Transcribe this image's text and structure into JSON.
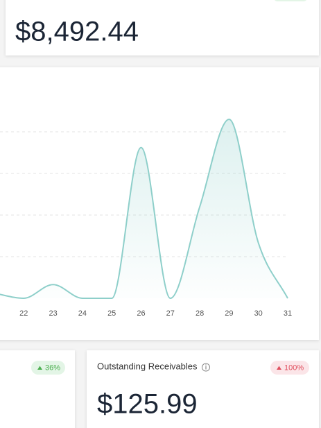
{
  "top_card": {
    "value": "$8,492.44"
  },
  "chart_data": {
    "type": "area",
    "categories": [
      null,
      "22",
      "23",
      "24",
      "25",
      "26",
      "27",
      "28",
      "29",
      "30",
      "31"
    ],
    "values": [
      0.12,
      0,
      0.33,
      0,
      0,
      3.62,
      0,
      2.2,
      4.3,
      1.33,
      0
    ],
    "color": "#8ecfca",
    "ylim": [
      0,
      4.5
    ],
    "yticks": [
      1,
      2,
      3,
      4
    ],
    "grid": true
  },
  "cards": [
    {
      "badge": "36%",
      "trend": "up"
    },
    {
      "title": "Outstanding Receivables",
      "badge": "100%",
      "trend": "up",
      "value": "$125.99"
    }
  ]
}
